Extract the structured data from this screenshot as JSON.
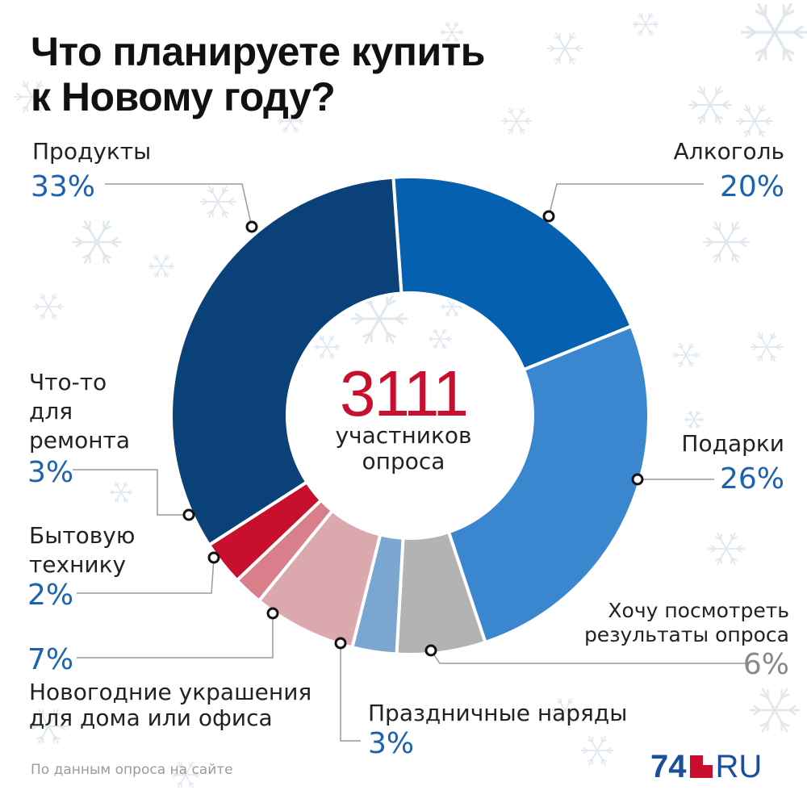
{
  "title_line1": "Что планируете купить",
  "title_line2": "к Новому году?",
  "center": {
    "number": "3111",
    "line1": "участников",
    "line2": "опроса"
  },
  "footnote": "По данным опроса на сайте",
  "logo": {
    "num": "74",
    "ru": "RU"
  },
  "colors": {
    "accent_blue": "#1b63b0",
    "accent_red": "#c8102e",
    "gray_text": "#888888"
  },
  "chart_data": {
    "type": "pie",
    "variant": "donut",
    "segments": [
      {
        "key": "alcohol",
        "lines": [
          "Алкоголь"
        ],
        "label_pct": "20%",
        "value": 20,
        "color": "#0560b0"
      },
      {
        "key": "gifts",
        "lines": [
          "Подарки"
        ],
        "label_pct": "26%",
        "value": 26,
        "color": "#3a87cf"
      },
      {
        "key": "results",
        "lines": [
          "Хочу посмотреть",
          "результаты опроса"
        ],
        "label_pct": "6%",
        "value": 6,
        "color": "#b3b3b3"
      },
      {
        "key": "outfits",
        "lines": [
          "Праздничные наряды"
        ],
        "label_pct": "3%",
        "value": 3,
        "color": "#7aa6cf"
      },
      {
        "key": "decor",
        "lines": [
          "Новогодние украшения",
          "для дома или офиса"
        ],
        "label_pct": "7%",
        "value": 7,
        "color": "#dba8ae"
      },
      {
        "key": "appliances",
        "lines": [
          "Бытовую",
          "технику"
        ],
        "label_pct": "2%",
        "value": 2,
        "color": "#d97f8b"
      },
      {
        "key": "repair",
        "lines": [
          "Что-то",
          "для",
          "ремонта"
        ],
        "label_pct": "3%",
        "value": 3,
        "color": "#c8102e"
      },
      {
        "key": "food",
        "lines": [
          "Продукты"
        ],
        "label_pct": "33%",
        "value": 33,
        "color": "#0a4178"
      }
    ]
  }
}
